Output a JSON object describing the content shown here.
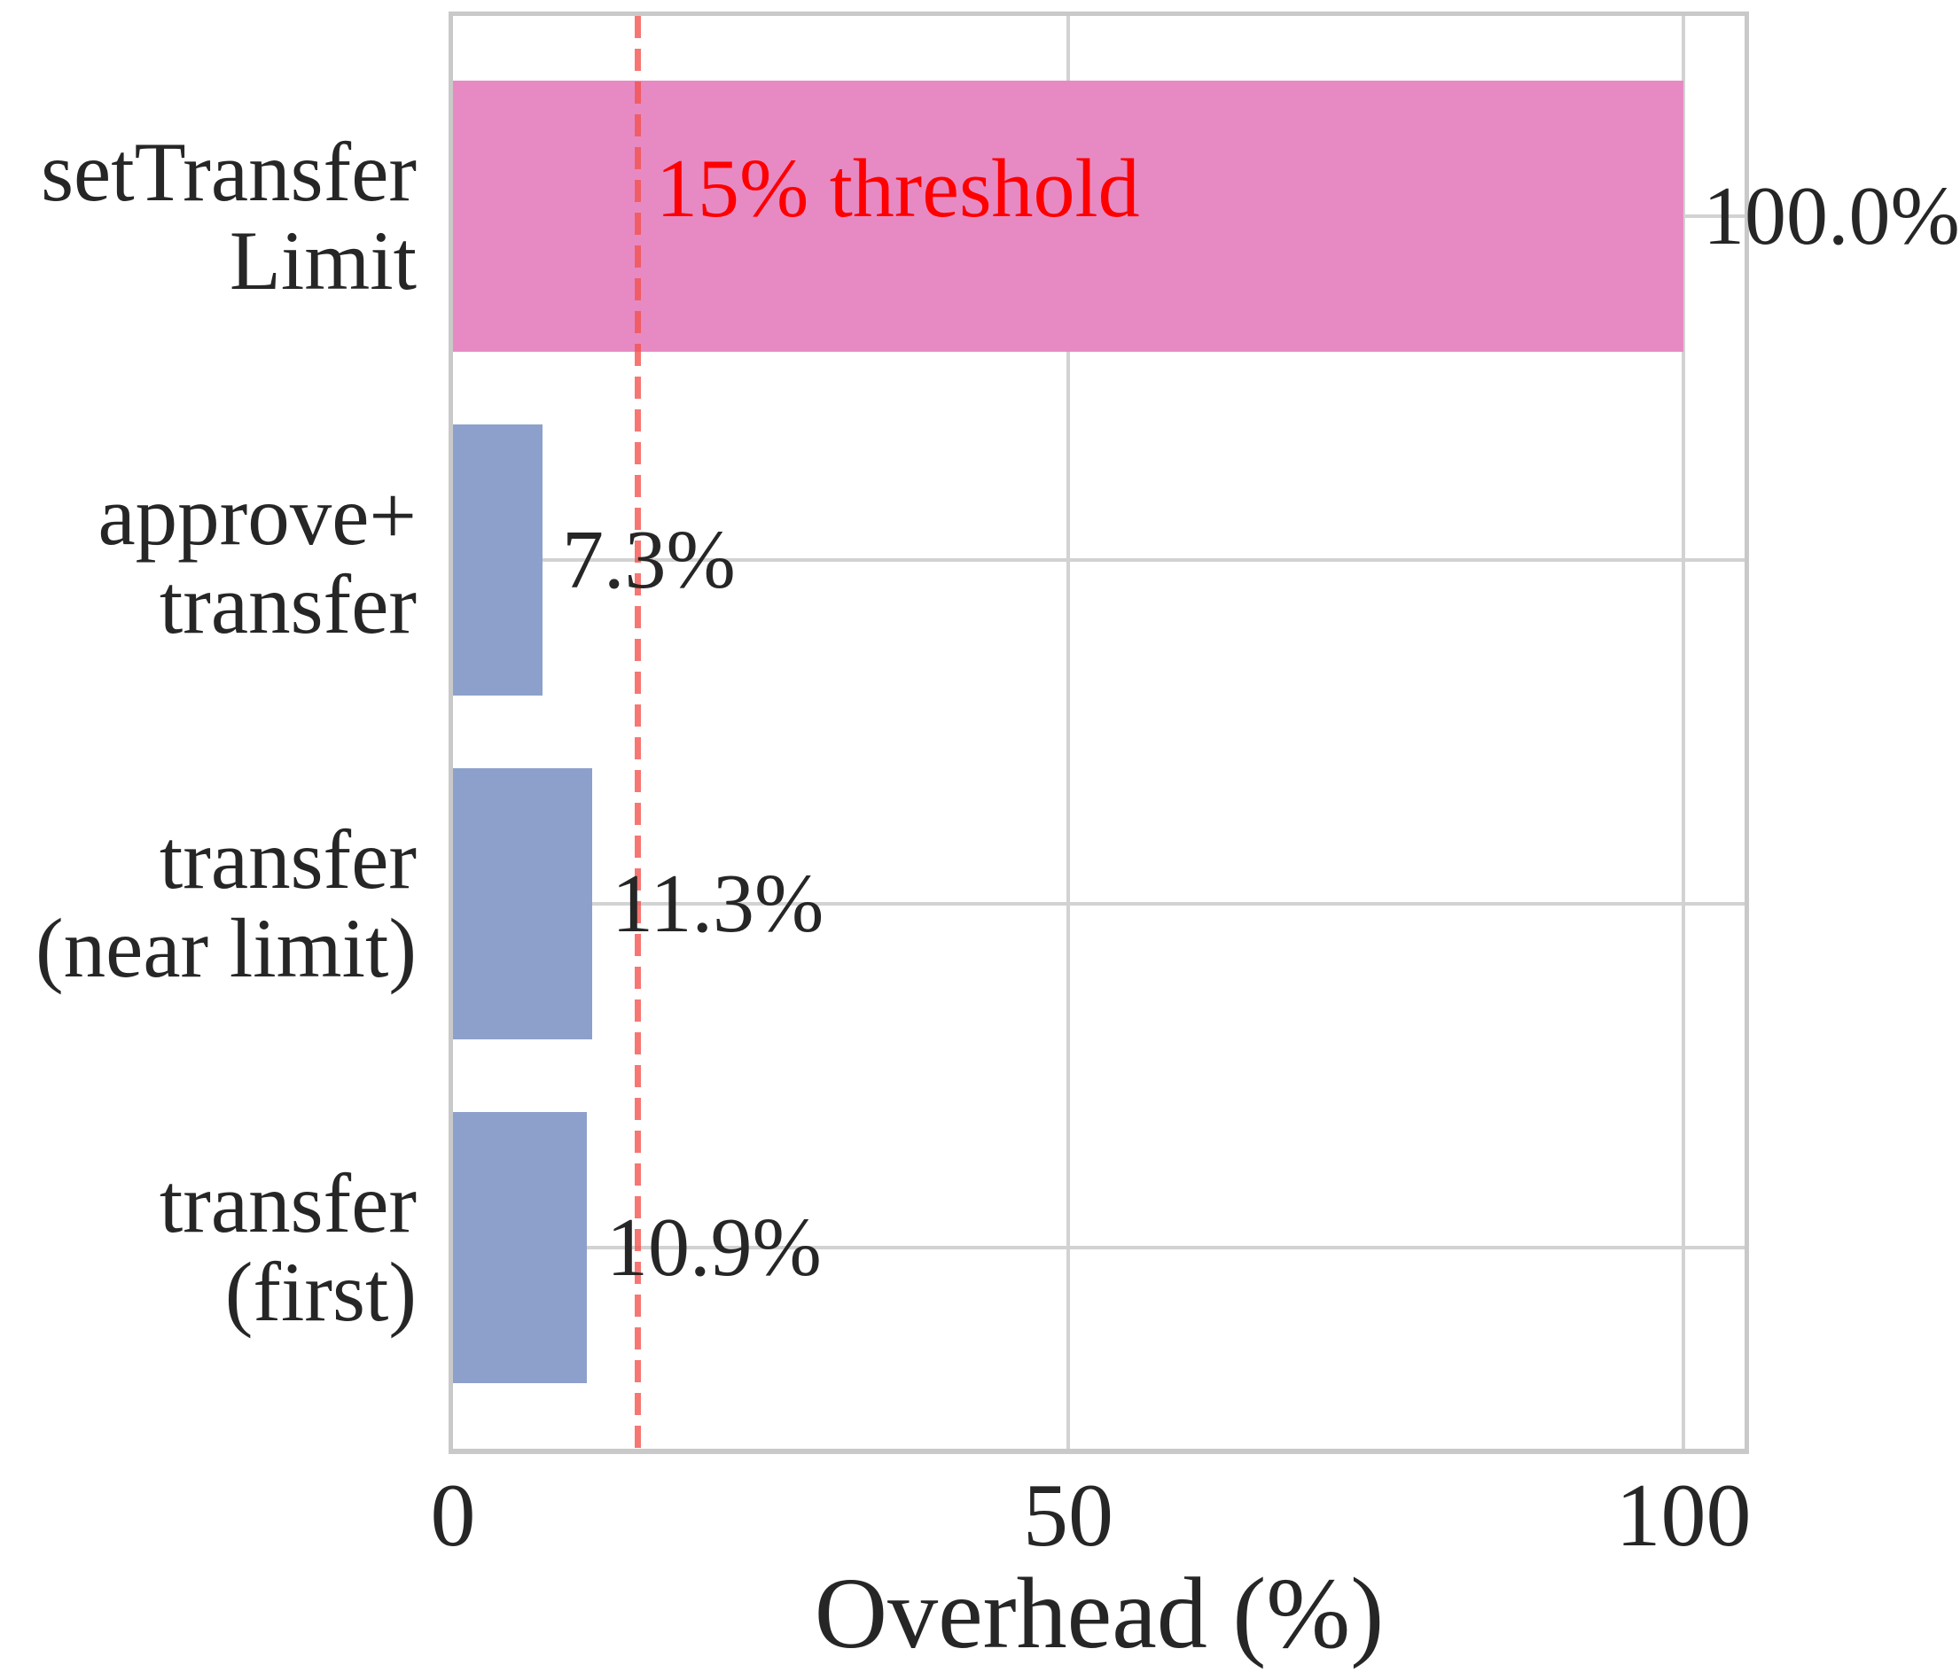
{
  "chart_data": {
    "type": "bar",
    "orientation": "horizontal",
    "title": "",
    "xlabel": "Overhead (%)",
    "ylabel": "",
    "categories": [
      "setTransfer\nLimit",
      "approve+\ntransfer",
      "transfer\n(near limit)",
      "transfer\n(first)"
    ],
    "values": [
      100.0,
      7.3,
      11.3,
      10.9
    ],
    "value_labels": [
      "100.0%",
      "7.3%",
      "11.3%",
      "10.9%"
    ],
    "bar_colors": [
      "#e78ac3",
      "#8da0cb",
      "#8da0cb",
      "#8da0cb"
    ],
    "x_ticks": [
      {
        "value": 0,
        "label": "0"
      },
      {
        "value": 50,
        "label": "50"
      },
      {
        "value": 100,
        "label": "100"
      }
    ],
    "xlim": [
      0,
      105
    ],
    "grid": true,
    "legend_position": "none",
    "threshold": {
      "value": 15,
      "label": "15% threshold"
    },
    "colors": {
      "threshold_line": "#f4504b",
      "threshold_label": "#ff0000",
      "grid": "#d2d2d2",
      "spine": "#c9c9c9",
      "text": "#262626"
    }
  }
}
